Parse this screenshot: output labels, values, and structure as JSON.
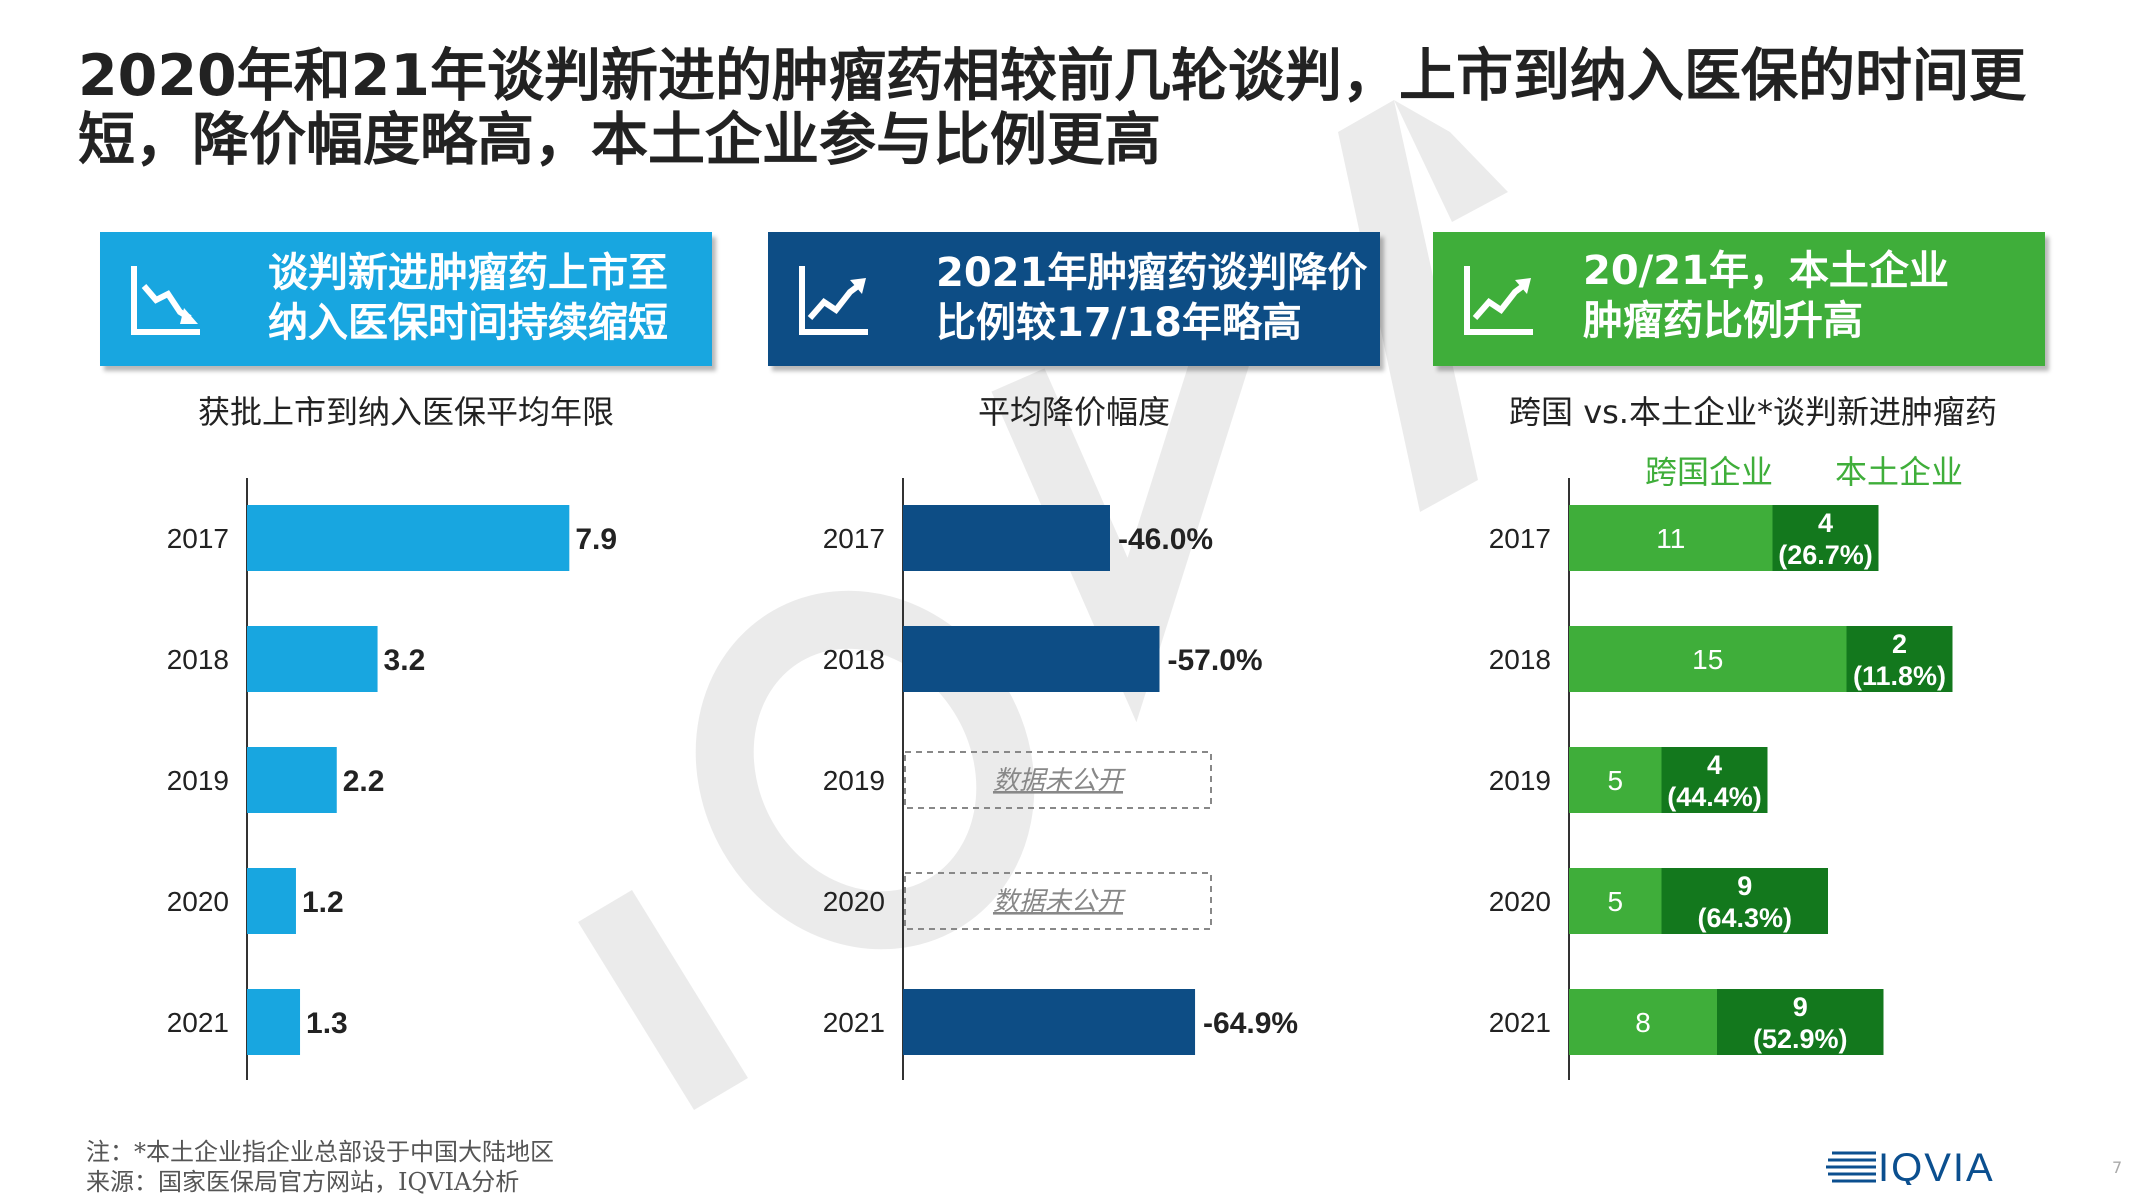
{
  "title": "2020年和21年谈判新进的肿瘤药相较前几轮谈判，上市到纳入医保的时间更短，降价幅度略高，本土企业参与比例更高",
  "watermark": "IQVIA",
  "banners": [
    {
      "line1": "谈判新进肿瘤药上市至",
      "line2": "纳入医保时间持续缩短",
      "color": "#18a6e0",
      "icon": "trend-down-icon"
    },
    {
      "line1": "2021年肿瘤药谈判降价",
      "line2": "比例较17/18年略高",
      "color": "#0d4d85",
      "icon": "trend-up-icon"
    },
    {
      "line1": "20/21年，本土企业",
      "line2": "肿瘤药比例升高",
      "color": "#3fae3a",
      "icon": "trend-up-icon"
    }
  ],
  "chart_data": [
    {
      "type": "bar",
      "orientation": "horizontal",
      "title": "获批上市到纳入医保平均年限",
      "categories": [
        "2017",
        "2018",
        "2019",
        "2020",
        "2021"
      ],
      "values": [
        7.9,
        3.2,
        2.2,
        1.2,
        1.3
      ],
      "labels": [
        "7.9",
        "3.2",
        "2.2",
        "1.2",
        "1.3"
      ],
      "color": "#18a6e0"
    },
    {
      "type": "bar",
      "orientation": "horizontal",
      "title": "平均降价幅度",
      "categories": [
        "2017",
        "2018",
        "2019",
        "2020",
        "2021"
      ],
      "values": [
        -46.0,
        -57.0,
        null,
        null,
        -64.9
      ],
      "labels": [
        "-46.0%",
        "-57.0%",
        "数据未公开",
        "数据未公开",
        "-64.9%"
      ],
      "color": "#0d4d85"
    },
    {
      "type": "bar",
      "orientation": "horizontal",
      "stacked": true,
      "title": "跨国 vs.本土企业*谈判新进肿瘤药",
      "categories": [
        "2017",
        "2018",
        "2019",
        "2020",
        "2021"
      ],
      "series": [
        {
          "name": "跨国企业",
          "values": [
            11,
            15,
            5,
            5,
            8
          ],
          "labels": [
            "11",
            "15",
            "5",
            "5",
            "8"
          ],
          "color": "#3fae3a"
        },
        {
          "name": "本土企业",
          "values": [
            4,
            2,
            4,
            9,
            9
          ],
          "labels": [
            "4",
            "2",
            "4",
            "9",
            "9"
          ],
          "pct_labels": [
            "(26.7%)",
            "(11.8%)",
            "(44.4%)",
            "(64.3%)",
            "(52.9%)"
          ],
          "color": "#13781d"
        }
      ]
    }
  ],
  "footnotes": {
    "note": "注：*本土企业指企业总部设于中国大陆地区",
    "source": "来源：国家医保局官方网站，IQVIA分析"
  },
  "logo_text": "IQVIA",
  "page_number": "7"
}
